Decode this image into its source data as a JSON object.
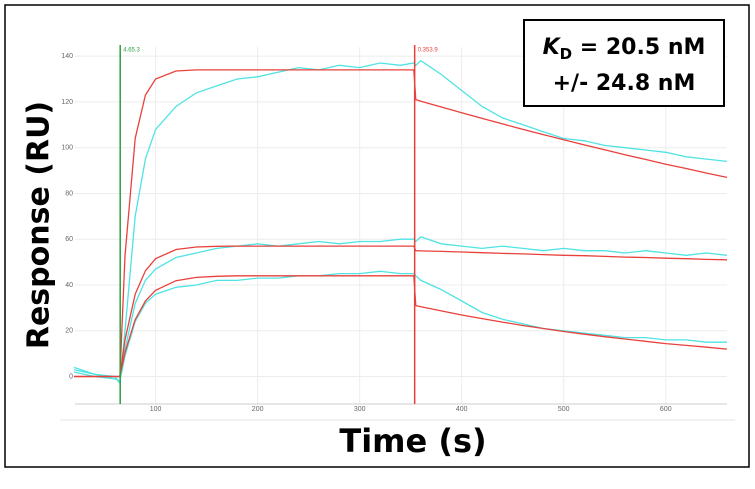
{
  "chart_data": {
    "type": "line",
    "xlabel": "Time (s)",
    "ylabel": "Response (RU)",
    "annotation": {
      "k": "K",
      "sub": "D",
      "line1": " = 20.5 nM",
      "line2": "+/- 24.8 nM"
    },
    "xlim": [
      21,
      660
    ],
    "ylim": [
      -12,
      144
    ],
    "xticks": [
      100,
      200,
      300,
      400,
      500,
      600
    ],
    "yticks": [
      0,
      20,
      40,
      60,
      80,
      100,
      120,
      140
    ],
    "grid": true,
    "vlines": [
      {
        "x": 65.3,
        "label": "4.65.3",
        "color": "#2e9e3e"
      },
      {
        "x": 353.9,
        "label": "0.353.9",
        "color": "#e8413c"
      }
    ],
    "x": [
      20,
      40,
      60,
      65,
      70,
      80,
      90,
      100,
      120,
      140,
      160,
      180,
      200,
      220,
      240,
      260,
      280,
      300,
      320,
      340,
      353,
      355,
      360,
      380,
      400,
      420,
      440,
      460,
      480,
      500,
      520,
      540,
      560,
      580,
      600,
      620,
      640,
      660
    ],
    "series": [
      {
        "color": "#4fe3e3",
        "values": [
          4,
          1,
          0,
          -3,
          20,
          70,
          95,
          108,
          118,
          124,
          127,
          130,
          131,
          133,
          135,
          134,
          136,
          135,
          137,
          136,
          137,
          136,
          138,
          132,
          125,
          118,
          113,
          110,
          107,
          104,
          103,
          101,
          100,
          99,
          98,
          96,
          95,
          94
        ]
      },
      {
        "color": "#4fe3e3",
        "values": [
          3,
          1,
          -1,
          -2,
          12,
          32,
          42,
          47,
          52,
          54,
          56,
          57,
          58,
          57,
          58,
          59,
          58,
          59,
          59,
          60,
          60,
          59,
          61,
          58,
          57,
          56,
          57,
          56,
          55,
          56,
          55,
          55,
          54,
          55,
          54,
          53,
          54,
          53
        ]
      },
      {
        "color": "#4fe3e3",
        "values": [
          2,
          0,
          -1,
          -2,
          9,
          24,
          32,
          36,
          39,
          40,
          42,
          42,
          43,
          43,
          44,
          44,
          45,
          45,
          46,
          45,
          45,
          44,
          42,
          38,
          33,
          28,
          25,
          23,
          21,
          20,
          19,
          18,
          17,
          17,
          16,
          16,
          15,
          15
        ]
      },
      {
        "color": "#e8413c",
        "values": [
          0,
          0,
          0,
          0,
          52.7,
          104.1,
          123,
          130,
          133.5,
          134,
          134,
          134,
          134,
          134,
          134,
          134,
          134,
          134,
          134,
          134,
          134,
          121,
          120.3,
          117.8,
          115.3,
          112.8,
          110.4,
          108,
          105.7,
          103.5,
          101.2,
          99.1,
          96.9,
          94.9,
          92.8,
          90.9,
          88.9,
          87
        ]
      },
      {
        "color": "#e8413c",
        "values": [
          0,
          0,
          0,
          0,
          16.1,
          36,
          46.2,
          51.5,
          55.5,
          56.6,
          56.9,
          57,
          57,
          57,
          57,
          57,
          57,
          57,
          57,
          57,
          57,
          55,
          54.9,
          54.7,
          54.4,
          54.1,
          53.8,
          53.6,
          53.3,
          53,
          52.8,
          52.5,
          52.2,
          52,
          51.7,
          51.5,
          51.2,
          51
        ]
      },
      {
        "color": "#e8413c",
        "values": [
          0,
          0,
          0,
          0,
          10.6,
          24.9,
          33,
          37.7,
          41.9,
          43.3,
          43.8,
          44,
          44,
          44,
          44,
          44,
          44,
          44,
          44,
          44,
          44,
          31,
          30.5,
          28.7,
          26.9,
          25.3,
          23.8,
          22.3,
          21,
          19.7,
          18.5,
          17.4,
          16.4,
          15.4,
          14.4,
          13.6,
          12.8,
          12
        ]
      }
    ]
  }
}
